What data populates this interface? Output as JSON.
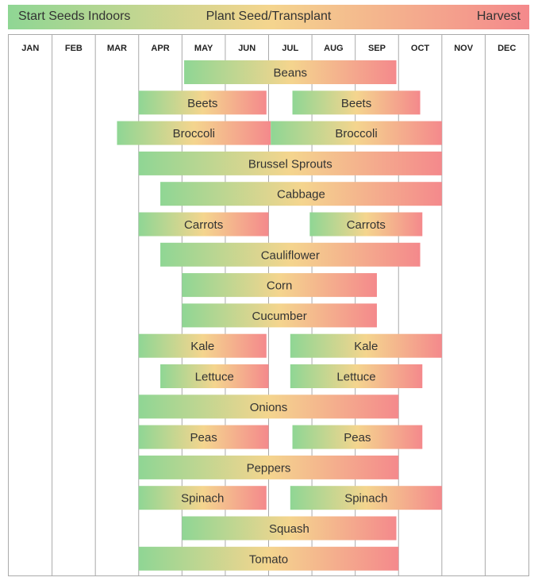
{
  "legend": {
    "start": "Start Seeds Indoors",
    "middle": "Plant Seed/Transplant",
    "end": "Harvest"
  },
  "colors": {
    "start": "#8fd694",
    "middle": "#f4d58e",
    "end": "#f4898c",
    "gridline": "#aaaaaa",
    "text": "#333333"
  },
  "chart_data": {
    "type": "bar",
    "orientation": "horizontal",
    "x_axis": "months",
    "months": [
      "JAN",
      "FEB",
      "MAR",
      "APR",
      "MAY",
      "JUN",
      "JUL",
      "AUG",
      "SEP",
      "OCT",
      "NOV",
      "DEC"
    ],
    "x_range_months": [
      0,
      12
    ],
    "grid": true,
    "value_units": "months elapsed since the start of January",
    "rows": [
      {
        "label": "Beans",
        "bars": [
          {
            "start": 4.05,
            "end": 8.95
          }
        ]
      },
      {
        "label": "Beets",
        "bars": [
          {
            "start": 3.0,
            "end": 5.95
          },
          {
            "start": 6.55,
            "end": 9.5
          }
        ]
      },
      {
        "label": "Broccoli",
        "bars": [
          {
            "start": 2.5,
            "end": 6.05
          },
          {
            "start": 6.05,
            "end": 10.0
          }
        ]
      },
      {
        "label": "Brussel Sprouts",
        "bars": [
          {
            "start": 3.0,
            "end": 10.0
          }
        ]
      },
      {
        "label": "Cabbage",
        "bars": [
          {
            "start": 3.5,
            "end": 10.0
          }
        ]
      },
      {
        "label": "Carrots",
        "bars": [
          {
            "start": 3.0,
            "end": 6.0
          },
          {
            "start": 6.95,
            "end": 9.55
          }
        ]
      },
      {
        "label": "Cauliflower",
        "bars": [
          {
            "start": 3.5,
            "end": 9.5
          }
        ]
      },
      {
        "label": "Corn",
        "bars": [
          {
            "start": 4.0,
            "end": 8.5
          }
        ]
      },
      {
        "label": "Cucumber",
        "bars": [
          {
            "start": 4.0,
            "end": 8.5
          }
        ]
      },
      {
        "label": "Kale",
        "bars": [
          {
            "start": 3.0,
            "end": 5.95
          },
          {
            "start": 6.5,
            "end": 10.0
          }
        ]
      },
      {
        "label": "Lettuce",
        "bars": [
          {
            "start": 3.5,
            "end": 6.0
          },
          {
            "start": 6.5,
            "end": 9.55
          }
        ]
      },
      {
        "label": "Onions",
        "bars": [
          {
            "start": 3.0,
            "end": 9.0
          }
        ]
      },
      {
        "label": "Peas",
        "bars": [
          {
            "start": 3.0,
            "end": 6.0
          },
          {
            "start": 6.55,
            "end": 9.55
          }
        ]
      },
      {
        "label": "Peppers",
        "bars": [
          {
            "start": 3.0,
            "end": 9.0
          }
        ]
      },
      {
        "label": "Spinach",
        "bars": [
          {
            "start": 3.0,
            "end": 5.95
          },
          {
            "start": 6.5,
            "end": 10.0
          }
        ]
      },
      {
        "label": "Squash",
        "bars": [
          {
            "start": 4.0,
            "end": 8.95
          }
        ]
      },
      {
        "label": "Tomato",
        "bars": [
          {
            "start": 3.0,
            "end": 9.0
          }
        ]
      }
    ]
  }
}
